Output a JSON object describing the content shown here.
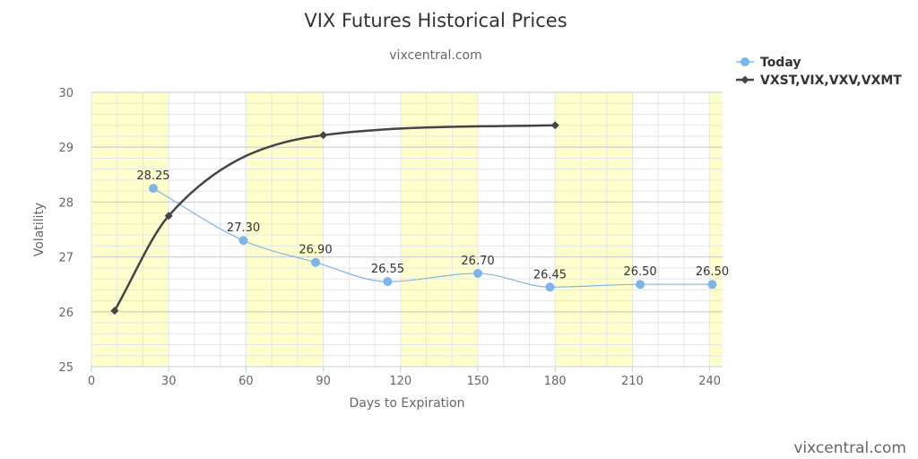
{
  "chart_data": {
    "type": "line",
    "title": "VIX Futures Historical Prices",
    "subtitle": "vixcentral.com",
    "xlabel": "Days to Expiration",
    "ylabel": "Volatility",
    "xlim": [
      0,
      245
    ],
    "ylim": [
      25,
      30
    ],
    "x_ticks": [
      "0",
      "30",
      "60",
      "90",
      "120",
      "150",
      "180",
      "210",
      "240"
    ],
    "y_ticks": [
      "25",
      "26",
      "27",
      "28",
      "29",
      "30"
    ],
    "grid": true,
    "bands": [
      [
        0,
        30
      ],
      [
        60,
        90
      ],
      [
        120,
        150
      ],
      [
        180,
        210
      ],
      [
        240,
        245
      ]
    ],
    "band_color": "#ffffcc",
    "legend_position": "top-right",
    "series": [
      {
        "name": "Today",
        "color": "#7cb5ec",
        "marker": "circle",
        "smooth": true,
        "show_labels": true,
        "points": [
          {
            "x": 24,
            "y": 28.25,
            "label": "28.25"
          },
          {
            "x": 59,
            "y": 27.3,
            "label": "27.30"
          },
          {
            "x": 87,
            "y": 26.9,
            "label": "26.90"
          },
          {
            "x": 115,
            "y": 26.55,
            "label": "26.55"
          },
          {
            "x": 150,
            "y": 26.7,
            "label": "26.70"
          },
          {
            "x": 178,
            "y": 26.45,
            "label": "26.45"
          },
          {
            "x": 213,
            "y": 26.5,
            "label": "26.50"
          },
          {
            "x": 241,
            "y": 26.5,
            "label": "26.50"
          }
        ]
      },
      {
        "name": "VXST,VIX,VXV,VXMT",
        "color": "#434348",
        "marker": "diamond",
        "smooth": true,
        "show_labels": false,
        "points": [
          {
            "x": 9,
            "y": 26.02
          },
          {
            "x": 30,
            "y": 27.75
          },
          {
            "x": 90,
            "y": 29.22
          },
          {
            "x": 180,
            "y": 29.4
          }
        ]
      }
    ]
  },
  "watermark": "vixcentral.com"
}
